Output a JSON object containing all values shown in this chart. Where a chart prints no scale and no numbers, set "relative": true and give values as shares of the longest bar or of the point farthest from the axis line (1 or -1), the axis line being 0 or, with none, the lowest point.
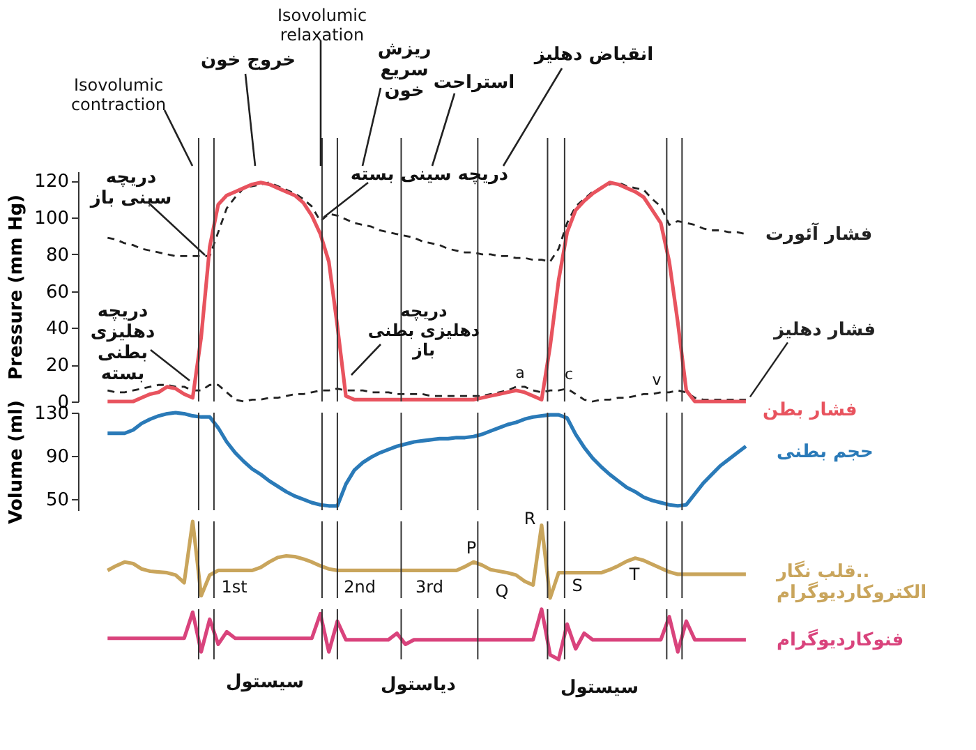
{
  "chart_data": [
    {
      "type": "line",
      "ylabel": "Pressure (mm Hg)",
      "ylim": [
        0,
        125
      ],
      "yticks": [
        0,
        20,
        40,
        60,
        80,
        100,
        120
      ],
      "tick_labels": "y",
      "categories": [
        null,
        null,
        null,
        null,
        null,
        null,
        null,
        null,
        null,
        null,
        null,
        null,
        null,
        null,
        null,
        null,
        null,
        null,
        null,
        null,
        null,
        null,
        null,
        null,
        null,
        null,
        null,
        null,
        null,
        null,
        null,
        null,
        null,
        null,
        null,
        null,
        null,
        null,
        null,
        null,
        null,
        null,
        null,
        null,
        null,
        null,
        null,
        null,
        null,
        null,
        null,
        null,
        null,
        null,
        null,
        null,
        null,
        null,
        null,
        null,
        null,
        null,
        null,
        null,
        null,
        null,
        null,
        null,
        null,
        null,
        null,
        null,
        null,
        null,
        null,
        null,
        null
      ],
      "series": [
        {
          "name": "فشار آئورت",
          "color": "#222222",
          "line_style": "dashed",
          "values": [
            null,
            89,
            88,
            86,
            85,
            83,
            82,
            81,
            80,
            79,
            79,
            79,
            79,
            79,
            92,
            105,
            111,
            116,
            117,
            118,
            119,
            117,
            115,
            113,
            110,
            106,
            98,
            102,
            101,
            99,
            97,
            96,
            95,
            93,
            92,
            91,
            90,
            89,
            87,
            86,
            85,
            83,
            82,
            81,
            81,
            80,
            80,
            79,
            79,
            78,
            78,
            77,
            77,
            76,
            83,
            97,
            106,
            110,
            114,
            116,
            118,
            119,
            117,
            116,
            115,
            110,
            106,
            96,
            98,
            97,
            96,
            94,
            93,
            93,
            92,
            92,
            91
          ]
        },
        {
          "name": "فشار دهلیز",
          "color": "#222222",
          "line_style": "dashed",
          "values": [
            null,
            6,
            5,
            5,
            6,
            7,
            8,
            9,
            9,
            8,
            8,
            6,
            6,
            9,
            9,
            5,
            1,
            0,
            1,
            1,
            2,
            2,
            3,
            4,
            4,
            5,
            6,
            6,
            7,
            6,
            6,
            6,
            5,
            5,
            5,
            4,
            4,
            4,
            4,
            3,
            3,
            3,
            3,
            3,
            3,
            3,
            4,
            5,
            6,
            8,
            8,
            6,
            5,
            6,
            6,
            7,
            4,
            1,
            0,
            1,
            1,
            2,
            2,
            3,
            4,
            4,
            5,
            5,
            6,
            5,
            2,
            1,
            1,
            1,
            1,
            1,
            1
          ]
        },
        {
          "name": "فشار بطن",
          "color": "#e8535e",
          "line_style": "solid",
          "values": [
            null,
            0,
            0,
            0,
            0,
            2,
            4,
            5,
            8,
            7,
            4,
            2,
            35,
            84,
            107,
            112,
            114,
            116,
            118,
            119,
            118,
            116,
            114,
            112,
            108,
            101,
            91,
            76,
            41,
            3,
            1,
            1,
            1,
            1,
            1,
            1,
            1,
            1,
            1,
            1,
            1,
            1,
            1,
            1,
            1,
            2,
            3,
            4,
            5,
            6,
            5,
            3,
            1,
            30,
            66,
            92,
            104,
            109,
            113,
            116,
            119,
            118,
            116,
            114,
            111,
            104,
            97,
            76,
            43,
            6,
            0,
            0,
            0,
            0,
            0,
            0,
            0
          ]
        }
      ],
      "annotations": [
        "Isovolumic\ncontraction",
        "خروج خون",
        "Isovolumic\nrelaxation",
        "ریزش\nسریع\nخون",
        "استراحت",
        "انقباض دهلیز",
        "دریچه\nسینی باز",
        "دریچه سینی بسته",
        "دریچه\nدهلیزی\nبطنی\nبسته",
        "دریچه\nدهلیزی بطنی\nباز",
        "a",
        "c",
        "v"
      ]
    },
    {
      "type": "line",
      "ylabel": "Volume (ml)",
      "ylim": [
        40,
        130
      ],
      "yticks": [
        50,
        90,
        130
      ],
      "tick_labels": "y",
      "categories": [
        null,
        null,
        null,
        null,
        null,
        null,
        null,
        null,
        null,
        null,
        null,
        null,
        null,
        null,
        null,
        null,
        null,
        null,
        null,
        null,
        null,
        null,
        null,
        null,
        null,
        null,
        null,
        null,
        null,
        null,
        null,
        null,
        null,
        null,
        null,
        null,
        null,
        null,
        null,
        null,
        null,
        null,
        null,
        null,
        null,
        null,
        null,
        null,
        null,
        null,
        null,
        null,
        null,
        null,
        null,
        null,
        null,
        null,
        null,
        null,
        null,
        null,
        null,
        null,
        null,
        null,
        null,
        null,
        null,
        null,
        null,
        null,
        null,
        null,
        null,
        null,
        null
      ],
      "series": [
        {
          "name": "حجم بطنی",
          "color": "#2a7ab8",
          "line_style": "solid",
          "values": [
            null,
            111,
            111,
            111,
            114,
            120,
            124,
            127,
            129,
            130,
            129,
            127,
            126,
            126,
            116,
            103,
            93,
            85,
            78,
            73,
            67,
            62,
            57,
            53,
            50,
            47,
            45,
            44,
            44,
            64,
            77,
            84,
            89,
            93,
            96,
            99,
            101,
            103,
            104,
            105,
            106,
            106,
            107,
            107,
            108,
            110,
            113,
            116,
            119,
            121,
            124,
            126,
            127,
            128,
            128,
            125,
            110,
            98,
            88,
            80,
            73,
            67,
            61,
            57,
            52,
            49,
            47,
            45,
            44,
            45,
            55,
            65,
            73,
            81,
            87,
            93,
            99
          ]
        }
      ]
    },
    {
      "type": "line",
      "relative": true,
      "tick_labels": false,
      "categories": [
        null,
        null,
        null,
        null,
        null,
        null,
        null,
        null,
        null,
        null,
        null,
        null,
        null,
        null,
        null,
        null,
        null,
        null,
        null,
        null,
        null,
        null,
        null,
        null,
        null,
        null,
        null,
        null,
        null,
        null,
        null,
        null,
        null,
        null,
        null,
        null,
        null,
        null,
        null,
        null,
        null,
        null,
        null,
        null,
        null,
        null,
        null,
        null,
        null,
        null,
        null,
        null,
        null,
        null,
        null,
        null,
        null,
        null,
        null,
        null,
        null,
        null,
        null,
        null,
        null,
        null,
        null,
        null,
        null,
        null,
        null,
        null,
        null,
        null,
        null,
        null,
        null
      ],
      "series": [
        {
          "name": "قلب نگار..\nالکتروکاردیوگرام",
          "color": "#c9a55c",
          "line_style": "solid",
          "values": [
            null,
            0.36,
            0.42,
            0.47,
            0.45,
            0.38,
            0.35,
            0.34,
            0.33,
            0.3,
            0.2,
            1,
            0.03,
            0.3,
            0.36,
            0.36,
            0.36,
            0.36,
            0.36,
            0.4,
            0.47,
            0.53,
            0.55,
            0.54,
            0.51,
            0.47,
            0.42,
            0.38,
            0.36,
            0.36,
            0.36,
            0.36,
            0.36,
            0.36,
            0.36,
            0.36,
            0.36,
            0.36,
            0.36,
            0.36,
            0.36,
            0.36,
            0.36,
            0.41,
            0.47,
            0.43,
            0.37,
            0.35,
            0.33,
            0.3,
            0.22,
            0.17,
            0.95,
            0,
            0.33,
            0.33,
            0.33,
            0.33,
            0.33,
            0.33,
            0.37,
            0.42,
            0.48,
            0.52,
            0.49,
            0.44,
            0.39,
            0.34,
            0.31,
            0.31,
            0.31,
            0.31,
            0.31,
            0.31,
            0.31,
            0.31,
            0.31
          ]
        }
      ],
      "annotations": [
        "P",
        "Q",
        "R",
        "S",
        "T"
      ]
    },
    {
      "type": "line",
      "relative": true,
      "tick_labels": false,
      "categories": [
        null,
        null,
        null,
        null,
        null,
        null,
        null,
        null,
        null,
        null,
        null,
        null,
        null,
        null,
        null,
        null,
        null,
        null,
        null,
        null,
        null,
        null,
        null,
        null,
        null,
        null,
        null,
        null,
        null,
        null,
        null,
        null,
        null,
        null,
        null,
        null,
        null,
        null,
        null,
        null,
        null,
        null,
        null,
        null,
        null,
        null,
        null,
        null,
        null,
        null,
        null,
        null,
        null,
        null,
        null,
        null,
        null,
        null,
        null,
        null,
        null,
        null,
        null,
        null,
        null,
        null,
        null,
        null,
        null,
        null,
        null,
        null,
        null,
        null,
        null,
        null,
        null
      ],
      "series": [
        {
          "name": "فنوکاردیوگرام",
          "color": "#d9437c",
          "line_style": "solid",
          "values": [
            null,
            0.42,
            0.42,
            0.42,
            0.42,
            0.42,
            0.42,
            0.42,
            0.42,
            0.42,
            0.42,
            0.94,
            0.15,
            0.8,
            0.3,
            0.55,
            0.42,
            0.42,
            0.42,
            0.42,
            0.42,
            0.42,
            0.42,
            0.42,
            0.42,
            0.42,
            0.91,
            0.15,
            0.76,
            0.39,
            0.39,
            0.39,
            0.39,
            0.39,
            0.39,
            0.52,
            0.3,
            0.39,
            0.39,
            0.39,
            0.39,
            0.39,
            0.39,
            0.39,
            0.39,
            0.39,
            0.39,
            0.39,
            0.39,
            0.39,
            0.39,
            0.39,
            1,
            0.09,
            0,
            0.7,
            0.21,
            0.52,
            0.39,
            0.39,
            0.39,
            0.39,
            0.39,
            0.39,
            0.39,
            0.39,
            0.39,
            0.85,
            0.15,
            0.76,
            0.39,
            0.39,
            0.39,
            0.39,
            0.39,
            0.39,
            0.39
          ]
        }
      ],
      "annotations": [
        "1st",
        "2nd",
        "3rd",
        "سیستول",
        "دیاستول",
        "سیستول"
      ]
    }
  ]
}
